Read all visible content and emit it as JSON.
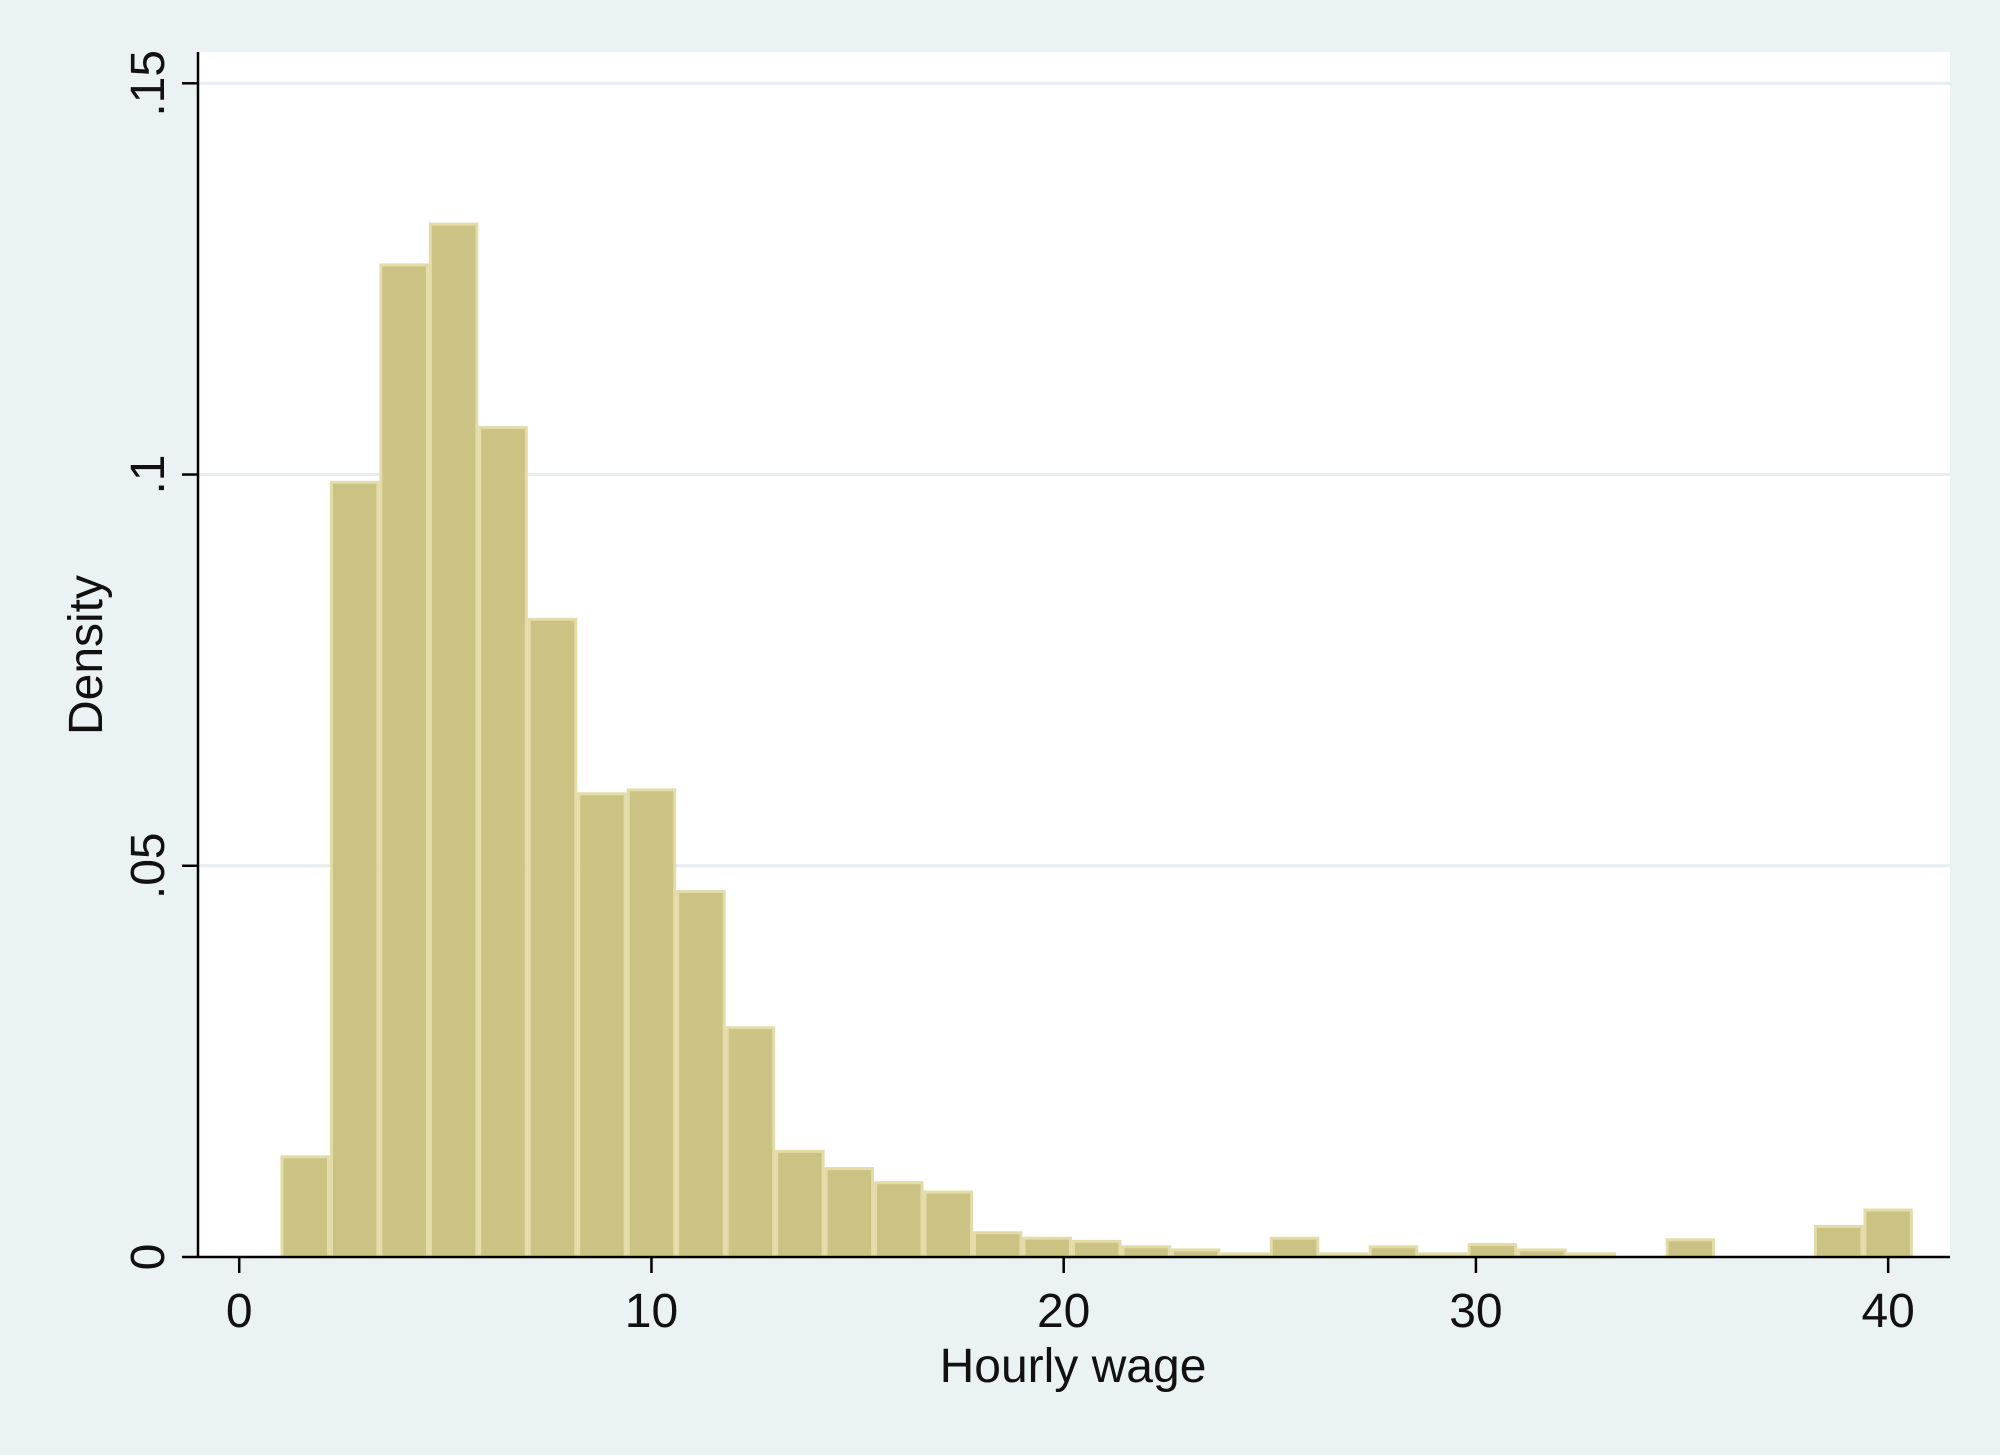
{
  "chart_data": {
    "type": "bar",
    "title": "",
    "xlabel": "Hourly wage",
    "ylabel": "Density",
    "xlim": [
      -1,
      41.5
    ],
    "ylim": [
      0,
      0.154
    ],
    "x_ticks": [
      {
        "value": 0,
        "label": "0"
      },
      {
        "value": 10,
        "label": "10"
      },
      {
        "value": 20,
        "label": "20"
      },
      {
        "value": 30,
        "label": "30"
      },
      {
        "value": 40,
        "label": "40"
      }
    ],
    "y_ticks": [
      {
        "value": 0,
        "label": "0"
      },
      {
        "value": 0.05,
        "label": ".05"
      },
      {
        "value": 0.1,
        "label": ".1"
      },
      {
        "value": 0.15,
        "label": ".15"
      }
    ],
    "grid": "horizontal",
    "legend": "none",
    "bin_start": 1.0,
    "bin_width": 1.2,
    "values": [
      0.0128,
      0.099,
      0.1268,
      0.132,
      0.106,
      0.0815,
      0.0592,
      0.0597,
      0.0467,
      0.0293,
      0.0135,
      0.0113,
      0.0095,
      0.0083,
      0.0031,
      0.0024,
      0.002,
      0.0013,
      0.0009,
      0.0004,
      0.0024,
      0.0004,
      0.0013,
      0.0004,
      0.0016,
      0.0009,
      0.0004,
      0.0,
      0.0022,
      0.0,
      0.0,
      0.0039,
      0.006
    ],
    "colors": {
      "background": "#eaf2f3",
      "plot_area": "#ffffff",
      "bar_fill": "#cbc384",
      "bar_edge": "#e3dca8",
      "grid": "#e6eef0",
      "axis": "#000000"
    }
  }
}
